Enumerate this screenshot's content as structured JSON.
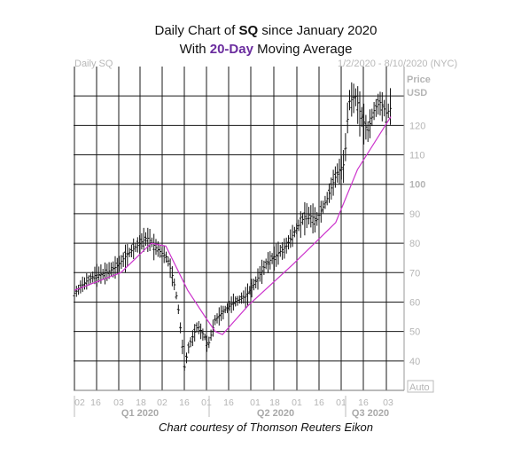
{
  "header": {
    "line1_pre": "Daily Chart of ",
    "line1_ticker": "SQ",
    "line1_post": " since January 2020",
    "line2_pre": "With ",
    "line2_ma": "20-Day",
    "line2_post": " Moving Average",
    "series_label": "Daily SQ",
    "date_range": "1/2/2020 - 8/10/2020 (NYC)"
  },
  "credit": "Chart courtesy of Thomson Reuters Eikon",
  "chart_data": {
    "type": "line",
    "title": "Daily Chart of SQ since January 2020",
    "subtitle": "With 20-Day Moving Average",
    "ylabel": "Price USD",
    "ylabel_lines": [
      "Price",
      "USD"
    ],
    "ylim": [
      30,
      140
    ],
    "y_ticks": [
      40,
      50,
      60,
      70,
      80,
      90,
      100,
      110,
      120
    ],
    "x_tick_labels": [
      "02",
      "16",
      "03",
      "18",
      "02",
      "16",
      "01",
      "16",
      "01",
      "18",
      "01",
      "16",
      "01",
      "16",
      "03"
    ],
    "quarters": [
      "Q1 2020",
      "Q2 2020",
      "Q3 2020"
    ],
    "scale_button": "Auto",
    "grid": true,
    "colors": {
      "price_bars": "#111111",
      "moving_average": "#cc33cc",
      "grid": "#1a1a1a"
    },
    "series": [
      {
        "name": "SQ",
        "kind": "ohlc_bars_approx_close",
        "points": [
          [
            "2020-01-02",
            63
          ],
          [
            "2020-01-10",
            67
          ],
          [
            "2020-01-16",
            69
          ],
          [
            "2020-01-24",
            70
          ],
          [
            "2020-01-31",
            72
          ],
          [
            "2020-02-07",
            76
          ],
          [
            "2020-02-14",
            79
          ],
          [
            "2020-02-21",
            82
          ],
          [
            "2020-02-28",
            78
          ],
          [
            "2020-03-06",
            75
          ],
          [
            "2020-03-10",
            68
          ],
          [
            "2020-03-13",
            60
          ],
          [
            "2020-03-16",
            47
          ],
          [
            "2020-03-18",
            37
          ],
          [
            "2020-03-20",
            44
          ],
          [
            "2020-03-25",
            50
          ],
          [
            "2020-03-27",
            52
          ],
          [
            "2020-04-01",
            48
          ],
          [
            "2020-04-03",
            45
          ],
          [
            "2020-04-08",
            54
          ],
          [
            "2020-04-14",
            57
          ],
          [
            "2020-04-21",
            60
          ],
          [
            "2020-04-29",
            62
          ],
          [
            "2020-05-06",
            67
          ],
          [
            "2020-05-13",
            73
          ],
          [
            "2020-05-20",
            76
          ],
          [
            "2020-05-27",
            79
          ],
          [
            "2020-06-03",
            85
          ],
          [
            "2020-06-10",
            90
          ],
          [
            "2020-06-17",
            88
          ],
          [
            "2020-06-24",
            95
          ],
          [
            "2020-07-01",
            104
          ],
          [
            "2020-07-06",
            107
          ],
          [
            "2020-07-09",
            128
          ],
          [
            "2020-07-14",
            130
          ],
          [
            "2020-07-17",
            124
          ],
          [
            "2020-07-22",
            118
          ],
          [
            "2020-07-27",
            126
          ],
          [
            "2020-07-31",
            128
          ],
          [
            "2020-08-04",
            124
          ],
          [
            "2020-08-07",
            126
          ]
        ]
      },
      {
        "name": "20-Day",
        "kind": "moving_average",
        "points": [
          [
            "2020-01-02",
            64
          ],
          [
            "2020-02-03",
            70
          ],
          [
            "2020-02-24",
            80
          ],
          [
            "2020-03-05",
            79
          ],
          [
            "2020-03-20",
            64
          ],
          [
            "2020-04-01",
            55
          ],
          [
            "2020-04-08",
            50
          ],
          [
            "2020-04-13",
            49
          ],
          [
            "2020-05-01",
            59
          ],
          [
            "2020-06-01",
            73
          ],
          [
            "2020-06-30",
            87
          ],
          [
            "2020-07-15",
            105
          ],
          [
            "2020-08-07",
            123
          ]
        ]
      }
    ]
  }
}
